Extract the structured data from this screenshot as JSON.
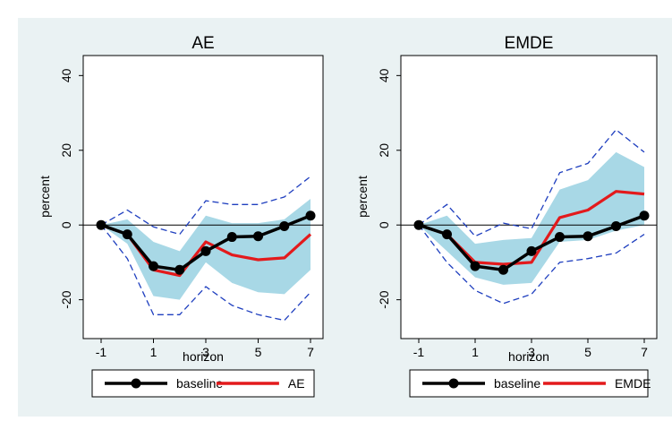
{
  "colors": {
    "background": "#eaf2f3",
    "plot_background": "#ffffff",
    "band_fill": "#a8d8e6",
    "baseline": "#000000",
    "highlight": "#e31a1c",
    "dashed": "#1f3fbf"
  },
  "chart_data": [
    {
      "type": "line",
      "title": "AE",
      "xlabel": "horizon",
      "ylabel": "percent",
      "x": [
        -1,
        0,
        1,
        2,
        3,
        4,
        5,
        6,
        7
      ],
      "xticks": [
        -1,
        1,
        3,
        5,
        7
      ],
      "yticks": [
        -20,
        0,
        20,
        40
      ],
      "xlim": [
        -1.2,
        7.2
      ],
      "ylim": [
        -28,
        42
      ],
      "zero_line": true,
      "grid": false,
      "legend": {
        "placement": "bottom",
        "entries": [
          "baseline",
          "AE"
        ]
      },
      "series": [
        {
          "name": "baseline",
          "style": "line-markers",
          "values": [
            0,
            -2.5,
            -11,
            -12,
            -7,
            -3.2,
            -3,
            -0.3,
            2.5
          ]
        },
        {
          "name": "AE",
          "style": "line",
          "values": [
            0,
            -2.5,
            -12,
            -13.5,
            -4.5,
            -8,
            -9.3,
            -8.8,
            -2.5
          ]
        },
        {
          "style": "band",
          "upper": [
            0,
            1.5,
            -4.5,
            -7,
            2.5,
            0.5,
            0.5,
            1.5,
            7
          ],
          "lower": [
            0,
            -5,
            -19,
            -20,
            -10,
            -15.5,
            -18,
            -18.5,
            -12
          ]
        },
        {
          "style": "dashed",
          "upper": [
            0,
            4,
            -0.5,
            -2.5,
            6.5,
            5.5,
            5.5,
            7.5,
            13
          ],
          "lower": [
            0,
            -9,
            -24,
            -24,
            -16.5,
            -21.5,
            -24,
            -25.5,
            -18
          ]
        }
      ]
    },
    {
      "type": "line",
      "title": "EMDE",
      "xlabel": "horizon",
      "ylabel": "percent",
      "x": [
        -1,
        0,
        1,
        2,
        3,
        4,
        5,
        6,
        7
      ],
      "xticks": [
        -1,
        1,
        3,
        5,
        7
      ],
      "yticks": [
        -20,
        0,
        20,
        40
      ],
      "xlim": [
        -1.2,
        7.2
      ],
      "ylim": [
        -28,
        42
      ],
      "zero_line": true,
      "grid": false,
      "legend": {
        "placement": "bottom",
        "entries": [
          "baseline",
          "EMDE"
        ]
      },
      "series": [
        {
          "name": "baseline",
          "style": "line-markers",
          "values": [
            0,
            -2.5,
            -11,
            -12,
            -7,
            -3.2,
            -3,
            -0.3,
            2.5
          ]
        },
        {
          "name": "EMDE",
          "style": "line",
          "values": [
            0,
            -2.5,
            -10,
            -10.5,
            -10,
            2,
            4,
            9,
            8.3
          ]
        },
        {
          "style": "band",
          "upper": [
            0,
            2.5,
            -5,
            -4,
            -3.5,
            9.5,
            12,
            19.5,
            15.5
          ],
          "lower": [
            0,
            -7,
            -14,
            -16,
            -15.5,
            -4.5,
            -4,
            -1.5,
            0
          ]
        },
        {
          "style": "dashed",
          "upper": [
            0,
            5.5,
            -3,
            0.5,
            -1,
            14,
            16.5,
            25.5,
            19.5
          ],
          "lower": [
            0,
            -10,
            -17.5,
            -21,
            -18.5,
            -10,
            -9,
            -7.5,
            -2.5
          ]
        }
      ]
    }
  ]
}
